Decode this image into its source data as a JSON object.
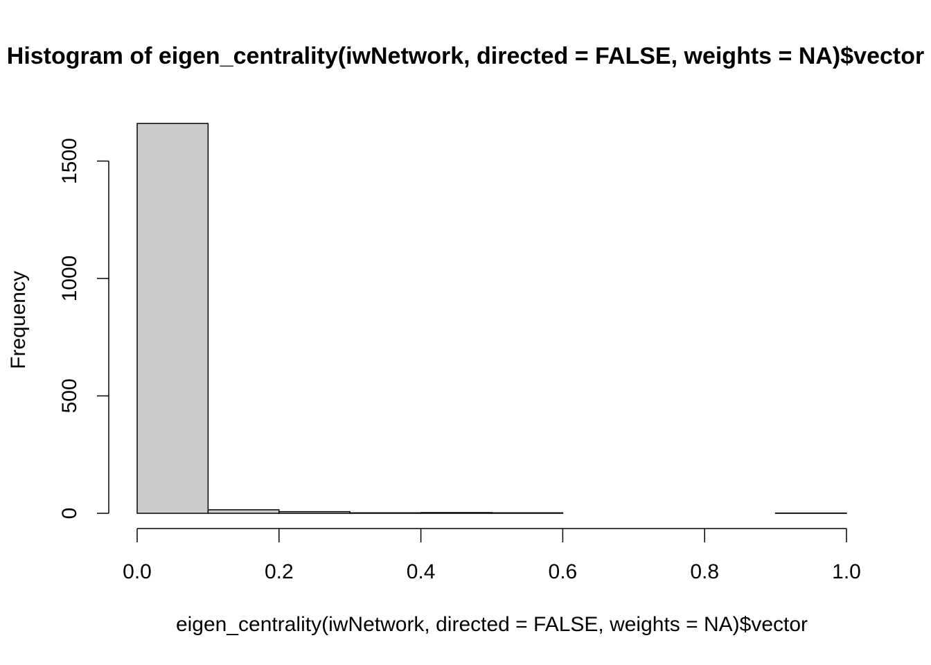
{
  "chart_data": {
    "type": "bar",
    "title": "Histogram of eigen_centrality(iwNetwork, directed = FALSE, weights = NA)$vector",
    "xlabel": "eigen_centrality(iwNetwork, directed = FALSE, weights = NA)$vector",
    "ylabel": "Frequency",
    "bins": [
      {
        "x0": 0.0,
        "x1": 0.1,
        "count": 1660
      },
      {
        "x0": 0.1,
        "x1": 0.2,
        "count": 15
      },
      {
        "x0": 0.2,
        "x1": 0.3,
        "count": 7
      },
      {
        "x0": 0.3,
        "x1": 0.4,
        "count": 2
      },
      {
        "x0": 0.4,
        "x1": 0.5,
        "count": 3
      },
      {
        "x0": 0.5,
        "x1": 0.6,
        "count": 2
      },
      {
        "x0": 0.6,
        "x1": 0.7,
        "count": 0
      },
      {
        "x0": 0.7,
        "x1": 0.8,
        "count": 0
      },
      {
        "x0": 0.8,
        "x1": 0.9,
        "count": 0
      },
      {
        "x0": 0.9,
        "x1": 1.0,
        "count": 1
      }
    ],
    "xlim": [
      0.0,
      1.0
    ],
    "ylim": [
      0,
      1660
    ],
    "x_ticks": [
      "0.0",
      "0.2",
      "0.4",
      "0.6",
      "0.8",
      "1.0"
    ],
    "y_ticks": [
      "0",
      "500",
      "1000",
      "1500"
    ],
    "bar_fill": "#cccccc",
    "bar_stroke": "#000000",
    "grid": false
  }
}
